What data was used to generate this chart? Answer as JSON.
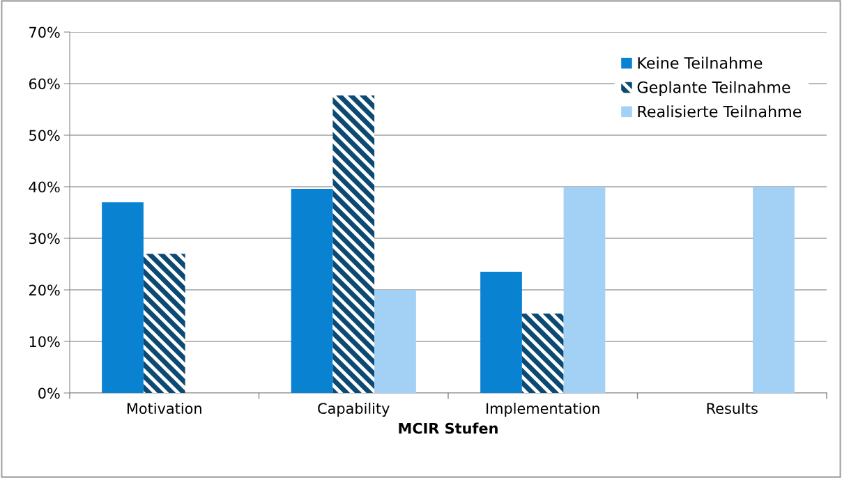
{
  "chart_data": {
    "type": "bar",
    "xlabel": "MCIR Stufen",
    "categories": [
      "Motivation",
      "Capability",
      "Implementation",
      "Results"
    ],
    "series": [
      {
        "name": "Keine Teilnahme",
        "color": "#0a82d2",
        "values": [
          37,
          39.6,
          23.5,
          0
        ]
      },
      {
        "name": "Geplante Teilnahme",
        "color": "#0d4a73",
        "values": [
          27,
          57.7,
          15.4,
          0
        ]
      },
      {
        "name": "Realisierte Teilnahme",
        "color": "#a3d0f5",
        "values": [
          0,
          20,
          40,
          40
        ]
      }
    ],
    "ylim": [
      0,
      70
    ],
    "yticks": [
      {
        "value": 0,
        "label": "0%"
      },
      {
        "value": 10,
        "label": "10%"
      },
      {
        "value": 20,
        "label": "20%"
      },
      {
        "value": 30,
        "label": "30%"
      },
      {
        "value": 40,
        "label": "40%"
      },
      {
        "value": 50,
        "label": "50%"
      },
      {
        "value": 60,
        "label": "60%"
      },
      {
        "value": 70,
        "label": "70%"
      }
    ],
    "grid": "y",
    "legend": "top right"
  }
}
